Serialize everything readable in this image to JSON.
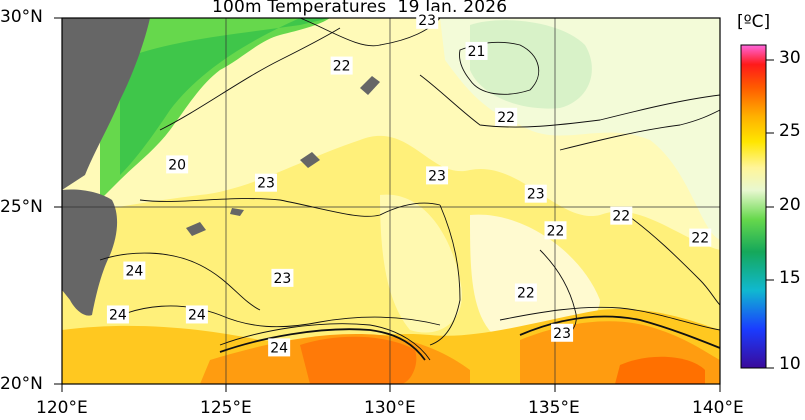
{
  "title": "100m Temperatures  19 Jan. 2026",
  "lat_labels": [
    "30°N",
    "25°N",
    "20°N"
  ],
  "lon_labels": [
    "120°E",
    "125°E",
    "130°E",
    "135°E",
    "140°E"
  ],
  "colorbar": {
    "unit": "[ºC]",
    "ticks": [
      "30",
      "25",
      "20",
      "15",
      "10"
    ],
    "range": [
      10,
      32
    ]
  },
  "contour_labels": [
    {
      "text": "23",
      "lon": 131.1,
      "lat": 29.95
    },
    {
      "text": "21",
      "lon": 132.6,
      "lat": 29.1
    },
    {
      "text": "22",
      "lon": 128.5,
      "lat": 28.7
    },
    {
      "text": "22",
      "lon": 133.5,
      "lat": 27.3
    },
    {
      "text": "20",
      "lon": 123.5,
      "lat": 26.0
    },
    {
      "text": "23",
      "lon": 126.2,
      "lat": 25.5
    },
    {
      "text": "23",
      "lon": 131.4,
      "lat": 25.7
    },
    {
      "text": "23",
      "lon": 134.4,
      "lat": 25.2
    },
    {
      "text": "22",
      "lon": 137.0,
      "lat": 24.6
    },
    {
      "text": "22",
      "lon": 135.0,
      "lat": 24.2
    },
    {
      "text": "22",
      "lon": 139.4,
      "lat": 24.0
    },
    {
      "text": "24",
      "lon": 122.2,
      "lat": 23.1
    },
    {
      "text": "23",
      "lon": 126.7,
      "lat": 22.9
    },
    {
      "text": "22",
      "lon": 134.1,
      "lat": 22.5
    },
    {
      "text": "24",
      "lon": 121.7,
      "lat": 21.9
    },
    {
      "text": "24",
      "lon": 124.1,
      "lat": 21.9
    },
    {
      "text": "23",
      "lon": 135.2,
      "lat": 21.4
    },
    {
      "text": "24",
      "lon": 126.6,
      "lat": 21.0
    }
  ]
}
